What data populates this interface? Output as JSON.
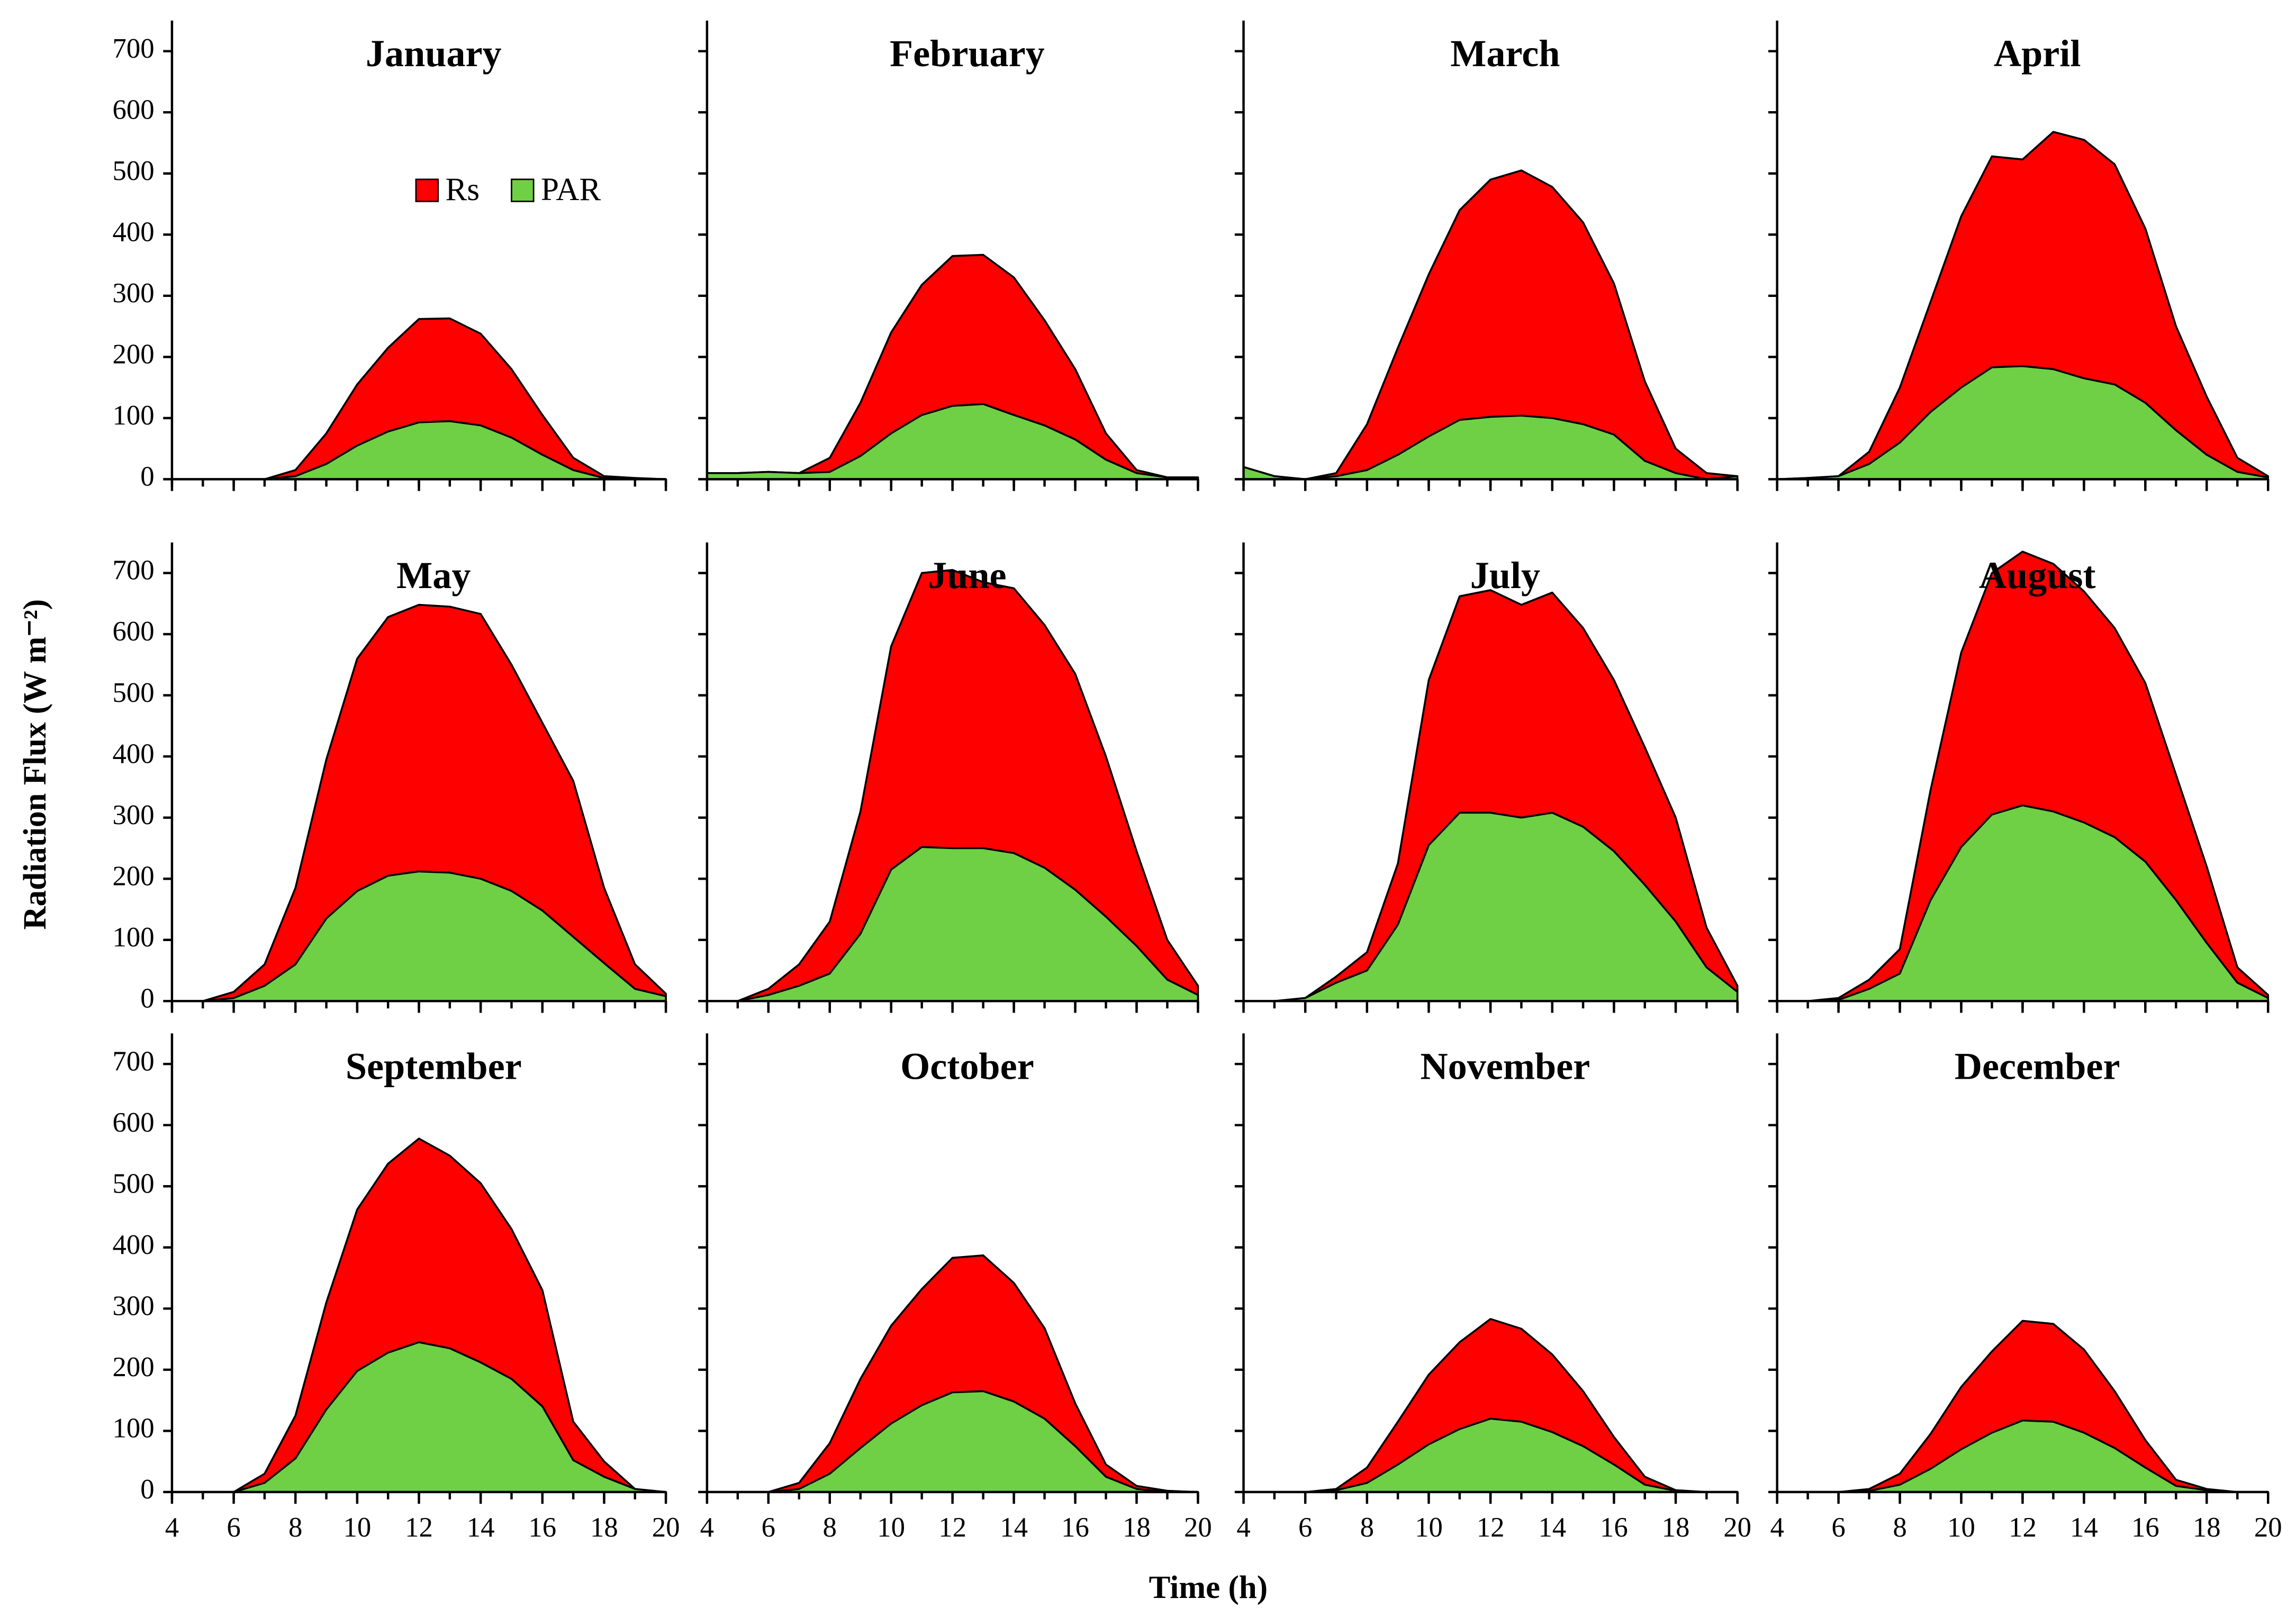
{
  "y_label": "Radiation Flux (W m⁻²)",
  "x_label": "Time (h)",
  "chart_data": [
    {
      "type": "area",
      "title": "January",
      "x": [
        4,
        5,
        6,
        7,
        8,
        9,
        10,
        11,
        12,
        13,
        14,
        15,
        16,
        17,
        18,
        19,
        20
      ],
      "xlim": [
        4,
        20
      ],
      "xticks": [
        4,
        6,
        8,
        10,
        12,
        14,
        16,
        18,
        20
      ],
      "ylim": [
        0,
        750
      ],
      "yticks": [
        0,
        100,
        200,
        300,
        400,
        500,
        600,
        700
      ],
      "series": [
        {
          "name": "Rs",
          "color": "#ff0000",
          "values": [
            0,
            0,
            0,
            0,
            15,
            75,
            155,
            215,
            262,
            263,
            238,
            180,
            105,
            35,
            5,
            2,
            0
          ]
        },
        {
          "name": "PAR",
          "color": "#6fd045",
          "values": [
            0,
            0,
            0,
            0,
            5,
            25,
            55,
            78,
            93,
            95,
            88,
            68,
            40,
            15,
            2,
            0,
            0
          ]
        }
      ]
    },
    {
      "type": "area",
      "title": "February",
      "x": [
        4,
        5,
        6,
        7,
        8,
        9,
        10,
        11,
        12,
        13,
        14,
        15,
        16,
        17,
        18,
        19,
        20
      ],
      "xlim": [
        4,
        20
      ],
      "xticks": [
        4,
        6,
        8,
        10,
        12,
        14,
        16,
        18,
        20
      ],
      "ylim": [
        0,
        750
      ],
      "yticks": [
        0,
        100,
        200,
        300,
        400,
        500,
        600,
        700
      ],
      "series": [
        {
          "name": "Rs",
          "color": "#ff0000",
          "values": [
            10,
            10,
            12,
            10,
            35,
            125,
            240,
            318,
            365,
            367,
            330,
            260,
            180,
            75,
            15,
            3,
            3
          ]
        },
        {
          "name": "PAR",
          "color": "#6fd045",
          "values": [
            10,
            10,
            12,
            10,
            12,
            38,
            75,
            105,
            120,
            123,
            105,
            88,
            65,
            32,
            10,
            3,
            3
          ]
        }
      ]
    },
    {
      "type": "area",
      "title": "March",
      "x": [
        4,
        5,
        6,
        7,
        8,
        9,
        10,
        11,
        12,
        13,
        14,
        15,
        16,
        17,
        18,
        19,
        20
      ],
      "xlim": [
        4,
        20
      ],
      "xticks": [
        4,
        6,
        8,
        10,
        12,
        14,
        16,
        18,
        20
      ],
      "ylim": [
        0,
        750
      ],
      "yticks": [
        0,
        100,
        200,
        300,
        400,
        500,
        600,
        700
      ],
      "series": [
        {
          "name": "Rs",
          "color": "#ff0000",
          "values": [
            20,
            5,
            0,
            10,
            90,
            215,
            335,
            440,
            490,
            505,
            478,
            420,
            320,
            160,
            50,
            10,
            5
          ]
        },
        {
          "name": "PAR",
          "color": "#6fd045",
          "values": [
            20,
            5,
            0,
            5,
            15,
            40,
            70,
            97,
            102,
            104,
            100,
            90,
            73,
            30,
            10,
            0,
            5
          ]
        }
      ]
    },
    {
      "type": "area",
      "title": "April",
      "x": [
        4,
        5,
        6,
        7,
        8,
        9,
        10,
        11,
        12,
        13,
        14,
        15,
        16,
        17,
        18,
        19,
        20
      ],
      "xlim": [
        4,
        20
      ],
      "xticks": [
        4,
        6,
        8,
        10,
        12,
        14,
        16,
        18,
        20
      ],
      "ylim": [
        0,
        750
      ],
      "yticks": [
        0,
        100,
        200,
        300,
        400,
        500,
        600,
        700
      ],
      "series": [
        {
          "name": "Rs",
          "color": "#ff0000",
          "values": [
            0,
            2,
            5,
            45,
            150,
            290,
            430,
            528,
            523,
            568,
            555,
            515,
            410,
            250,
            135,
            35,
            5
          ]
        },
        {
          "name": "PAR",
          "color": "#6fd045",
          "values": [
            0,
            2,
            5,
            25,
            60,
            110,
            150,
            183,
            185,
            180,
            165,
            155,
            125,
            80,
            40,
            12,
            3
          ]
        }
      ]
    },
    {
      "type": "area",
      "title": "May",
      "x": [
        4,
        5,
        6,
        7,
        8,
        9,
        10,
        11,
        12,
        13,
        14,
        15,
        16,
        17,
        18,
        19,
        20
      ],
      "xlim": [
        4,
        20
      ],
      "xticks": [
        4,
        6,
        8,
        10,
        12,
        14,
        16,
        18,
        20
      ],
      "ylim": [
        0,
        750
      ],
      "yticks": [
        0,
        100,
        200,
        300,
        400,
        500,
        600,
        700
      ],
      "series": [
        {
          "name": "Rs",
          "color": "#ff0000",
          "values": [
            0,
            0,
            15,
            60,
            185,
            395,
            560,
            628,
            648,
            645,
            633,
            550,
            455,
            360,
            185,
            60,
            12
          ]
        },
        {
          "name": "PAR",
          "color": "#6fd045",
          "values": [
            0,
            0,
            5,
            25,
            60,
            135,
            180,
            205,
            212,
            210,
            200,
            180,
            148,
            105,
            62,
            20,
            8
          ]
        }
      ]
    },
    {
      "type": "area",
      "title": "June",
      "x": [
        4,
        5,
        6,
        7,
        8,
        9,
        10,
        11,
        12,
        13,
        14,
        15,
        16,
        17,
        18,
        19,
        20
      ],
      "xlim": [
        4,
        20
      ],
      "xticks": [
        4,
        6,
        8,
        10,
        12,
        14,
        16,
        18,
        20
      ],
      "ylim": [
        0,
        750
      ],
      "yticks": [
        0,
        100,
        200,
        300,
        400,
        500,
        600,
        700
      ],
      "series": [
        {
          "name": "Rs",
          "color": "#ff0000",
          "values": [
            0,
            0,
            20,
            60,
            130,
            310,
            580,
            700,
            705,
            685,
            675,
            615,
            535,
            400,
            245,
            100,
            25
          ]
        },
        {
          "name": "PAR",
          "color": "#6fd045",
          "values": [
            0,
            0,
            10,
            25,
            45,
            110,
            215,
            252,
            250,
            250,
            242,
            218,
            182,
            138,
            90,
            35,
            10
          ]
        }
      ]
    },
    {
      "type": "area",
      "title": "July",
      "x": [
        4,
        5,
        6,
        7,
        8,
        9,
        10,
        11,
        12,
        13,
        14,
        15,
        16,
        17,
        18,
        19,
        20
      ],
      "xlim": [
        4,
        20
      ],
      "xticks": [
        4,
        6,
        8,
        10,
        12,
        14,
        16,
        18,
        20
      ],
      "ylim": [
        0,
        750
      ],
      "yticks": [
        0,
        100,
        200,
        300,
        400,
        500,
        600,
        700
      ],
      "series": [
        {
          "name": "Rs",
          "color": "#ff0000",
          "values": [
            0,
            0,
            5,
            40,
            80,
            225,
            525,
            662,
            672,
            648,
            668,
            610,
            525,
            415,
            300,
            120,
            25
          ]
        },
        {
          "name": "PAR",
          "color": "#6fd045",
          "values": [
            0,
            0,
            5,
            30,
            50,
            125,
            255,
            308,
            308,
            300,
            308,
            285,
            245,
            190,
            130,
            55,
            15
          ]
        }
      ]
    },
    {
      "type": "area",
      "title": "August",
      "x": [
        4,
        5,
        6,
        7,
        8,
        9,
        10,
        11,
        12,
        13,
        14,
        15,
        16,
        17,
        18,
        19,
        20
      ],
      "xlim": [
        4,
        20
      ],
      "xticks": [
        4,
        6,
        8,
        10,
        12,
        14,
        16,
        18,
        20
      ],
      "ylim": [
        0,
        750
      ],
      "yticks": [
        0,
        100,
        200,
        300,
        400,
        500,
        600,
        700
      ],
      "series": [
        {
          "name": "Rs",
          "color": "#ff0000",
          "values": [
            0,
            0,
            5,
            35,
            85,
            345,
            570,
            700,
            735,
            715,
            670,
            610,
            520,
            370,
            220,
            55,
            10
          ]
        },
        {
          "name": "PAR",
          "color": "#6fd045",
          "values": [
            0,
            0,
            2,
            20,
            45,
            165,
            252,
            305,
            320,
            310,
            292,
            268,
            228,
            165,
            95,
            30,
            5
          ]
        }
      ]
    },
    {
      "type": "area",
      "title": "September",
      "x": [
        4,
        5,
        6,
        7,
        8,
        9,
        10,
        11,
        12,
        13,
        14,
        15,
        16,
        17,
        18,
        19,
        20
      ],
      "xlim": [
        4,
        20
      ],
      "xticks": [
        4,
        6,
        8,
        10,
        12,
        14,
        16,
        18,
        20
      ],
      "ylim": [
        0,
        750
      ],
      "yticks": [
        0,
        100,
        200,
        300,
        400,
        500,
        600,
        700
      ],
      "series": [
        {
          "name": "Rs",
          "color": "#ff0000",
          "values": [
            0,
            0,
            0,
            30,
            125,
            310,
            462,
            537,
            578,
            550,
            505,
            430,
            330,
            115,
            50,
            5,
            0
          ]
        },
        {
          "name": "PAR",
          "color": "#6fd045",
          "values": [
            0,
            0,
            0,
            15,
            55,
            135,
            198,
            228,
            245,
            235,
            212,
            185,
            140,
            52,
            25,
            5,
            0
          ]
        }
      ]
    },
    {
      "type": "area",
      "title": "October",
      "x": [
        4,
        5,
        6,
        7,
        8,
        9,
        10,
        11,
        12,
        13,
        14,
        15,
        16,
        17,
        18,
        19,
        20
      ],
      "xlim": [
        4,
        20
      ],
      "xticks": [
        4,
        6,
        8,
        10,
        12,
        14,
        16,
        18,
        20
      ],
      "ylim": [
        0,
        750
      ],
      "yticks": [
        0,
        100,
        200,
        300,
        400,
        500,
        600,
        700
      ],
      "series": [
        {
          "name": "Rs",
          "color": "#ff0000",
          "values": [
            0,
            0,
            0,
            15,
            80,
            185,
            272,
            332,
            383,
            387,
            342,
            268,
            145,
            45,
            10,
            2,
            0
          ]
        },
        {
          "name": "PAR",
          "color": "#6fd045",
          "values": [
            0,
            0,
            0,
            5,
            30,
            72,
            112,
            142,
            163,
            165,
            148,
            120,
            75,
            25,
            5,
            0,
            0
          ]
        }
      ]
    },
    {
      "type": "area",
      "title": "November",
      "x": [
        4,
        5,
        6,
        7,
        8,
        9,
        10,
        11,
        12,
        13,
        14,
        15,
        16,
        17,
        18,
        19,
        20
      ],
      "xlim": [
        4,
        20
      ],
      "xticks": [
        4,
        6,
        8,
        10,
        12,
        14,
        16,
        18,
        20
      ],
      "ylim": [
        0,
        750
      ],
      "yticks": [
        0,
        100,
        200,
        300,
        400,
        500,
        600,
        700
      ],
      "series": [
        {
          "name": "Rs",
          "color": "#ff0000",
          "values": [
            0,
            0,
            0,
            5,
            40,
            115,
            192,
            245,
            283,
            267,
            225,
            165,
            90,
            25,
            3,
            0,
            0
          ]
        },
        {
          "name": "PAR",
          "color": "#6fd045",
          "values": [
            0,
            0,
            0,
            3,
            15,
            45,
            78,
            103,
            120,
            115,
            98,
            75,
            45,
            12,
            2,
            0,
            0
          ]
        }
      ]
    },
    {
      "type": "area",
      "title": "December",
      "x": [
        4,
        5,
        6,
        7,
        8,
        9,
        10,
        11,
        12,
        13,
        14,
        15,
        16,
        17,
        18,
        19,
        20
      ],
      "xlim": [
        4,
        20
      ],
      "xticks": [
        4,
        6,
        8,
        10,
        12,
        14,
        16,
        18,
        20
      ],
      "ylim": [
        0,
        750
      ],
      "yticks": [
        0,
        100,
        200,
        300,
        400,
        500,
        600,
        700
      ],
      "series": [
        {
          "name": "Rs",
          "color": "#ff0000",
          "values": [
            0,
            0,
            0,
            5,
            30,
            95,
            172,
            230,
            280,
            275,
            233,
            165,
            85,
            20,
            5,
            0,
            0
          ]
        },
        {
          "name": "PAR",
          "color": "#6fd045",
          "values": [
            0,
            0,
            0,
            2,
            12,
            38,
            70,
            97,
            117,
            115,
            97,
            72,
            40,
            10,
            3,
            0,
            0
          ]
        }
      ]
    }
  ]
}
